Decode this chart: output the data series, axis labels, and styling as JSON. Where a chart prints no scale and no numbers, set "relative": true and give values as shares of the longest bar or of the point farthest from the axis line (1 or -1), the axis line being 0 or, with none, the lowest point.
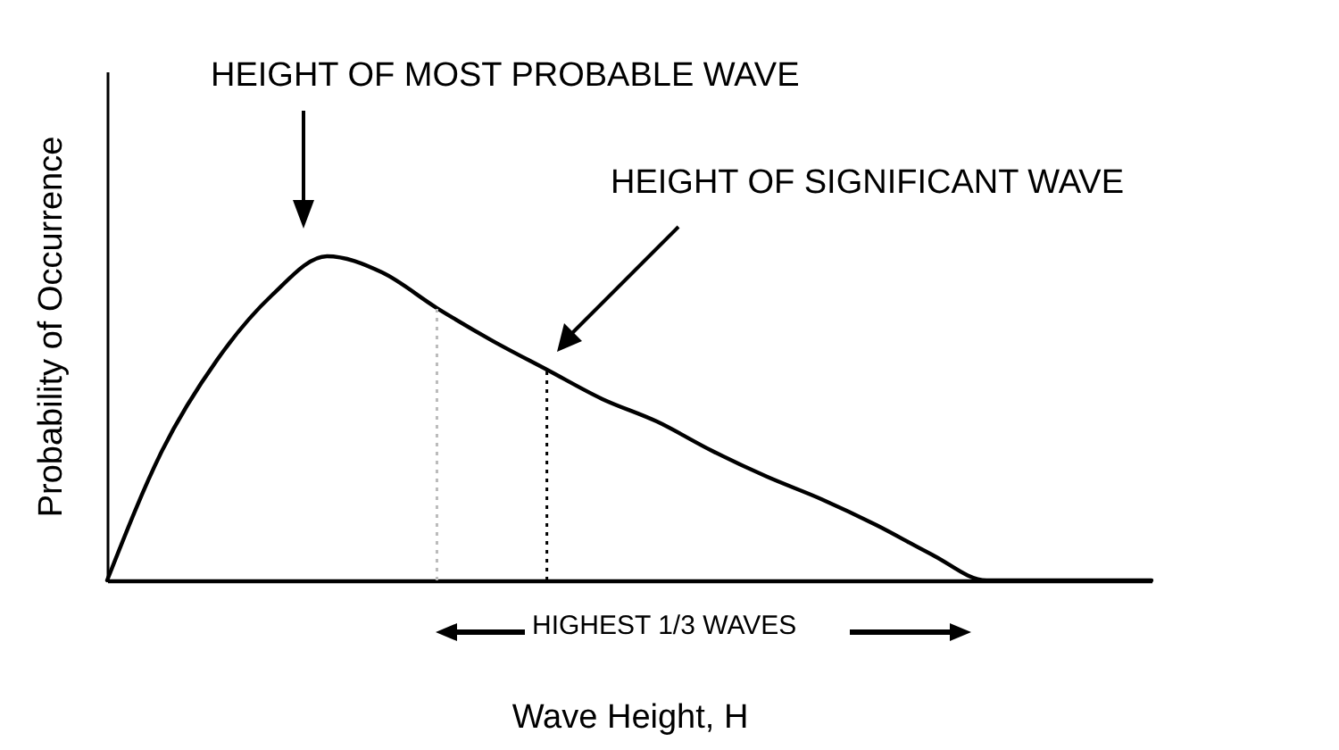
{
  "chart_data": {
    "type": "line",
    "relative": true,
    "xlabel": "Wave Height, H",
    "ylabel": "Probability of Occurrence",
    "categories": [
      null,
      null,
      null,
      null,
      null,
      null,
      null,
      null,
      null,
      null,
      null,
      null,
      null,
      null,
      null,
      null,
      null,
      null,
      null,
      null
    ],
    "series": [
      {
        "color": "#000000",
        "values": [
          0,
          0.4,
          0.68,
          0.88,
          1.0,
          0.95,
          0.84,
          0.74,
          0.65,
          0.56,
          0.49,
          0.4,
          0.32,
          0.25,
          0.17,
          0.08,
          0,
          0,
          0,
          0
        ]
      }
    ],
    "annotations": [
      "HEIGHT OF MOST PROBABLE WAVE",
      "HEIGHT OF SIGNIFICANT WAVE",
      "HIGHEST 1/3 WAVES"
    ],
    "grid": false,
    "marker": "none",
    "line_style": "solid"
  }
}
